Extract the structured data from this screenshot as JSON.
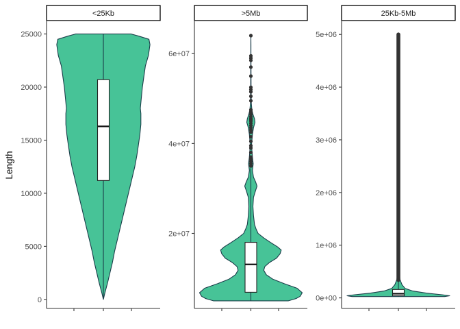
{
  "chart_data": {
    "type": "violin",
    "ylabel": "Length",
    "xlabel": "",
    "colors": {
      "violin_fill": "#47c397",
      "outline": "#1c3d4a",
      "box_fill": "#ffffff",
      "box_stroke": "#222222",
      "outlier": "#333333",
      "strip_fill": "#ffffff",
      "axis": "#333333"
    },
    "panels": [
      {
        "strip": "<25Kb",
        "y_range": [
          -850,
          26200
        ],
        "y_ticks": [
          0,
          5000,
          10000,
          15000,
          20000,
          25000
        ],
        "y_tick_labels": [
          "0",
          "5000",
          "10000",
          "15000",
          "20000",
          "25000"
        ],
        "violin_profile": [
          [
            0,
            0.0
          ],
          [
            600,
            0.03
          ],
          [
            1500,
            0.08
          ],
          [
            2500,
            0.13
          ],
          [
            3500,
            0.18
          ],
          [
            4500,
            0.22
          ],
          [
            5500,
            0.27
          ],
          [
            6500,
            0.32
          ],
          [
            7500,
            0.37
          ],
          [
            8500,
            0.42
          ],
          [
            9500,
            0.47
          ],
          [
            10500,
            0.52
          ],
          [
            11500,
            0.57
          ],
          [
            12500,
            0.62
          ],
          [
            13500,
            0.66
          ],
          [
            14500,
            0.69
          ],
          [
            15500,
            0.72
          ],
          [
            16500,
            0.74
          ],
          [
            17500,
            0.74
          ],
          [
            18000,
            0.73
          ],
          [
            19000,
            0.75
          ],
          [
            20000,
            0.77
          ],
          [
            21000,
            0.8
          ],
          [
            22000,
            0.83
          ],
          [
            23000,
            0.89
          ],
          [
            24000,
            0.92
          ],
          [
            24500,
            0.9
          ],
          [
            24800,
            0.7
          ],
          [
            25000,
            0.55
          ]
        ],
        "box": {
          "q1": 11200,
          "median": 16300,
          "q3": 20700,
          "whisker_low": 0,
          "whisker_high": 25000
        },
        "outliers": []
      },
      {
        "strip": ">5Mb",
        "y_range": [
          3300000,
          67200000
        ],
        "y_ticks": [
          20000000,
          40000000,
          60000000
        ],
        "y_tick_labels": [
          "2e+07",
          "4e+07",
          "6e+07"
        ],
        "violin_profile": [
          [
            5000000,
            0.73
          ],
          [
            5500000,
            0.88
          ],
          [
            6000000,
            0.96
          ],
          [
            6800000,
            1.0
          ],
          [
            7800000,
            0.9
          ],
          [
            8800000,
            0.65
          ],
          [
            9800000,
            0.43
          ],
          [
            10800000,
            0.3
          ],
          [
            11800000,
            0.25
          ],
          [
            12600000,
            0.27
          ],
          [
            13500000,
            0.36
          ],
          [
            14500000,
            0.5
          ],
          [
            15500000,
            0.57
          ],
          [
            16300000,
            0.59
          ],
          [
            17000000,
            0.52
          ],
          [
            18000000,
            0.38
          ],
          [
            19000000,
            0.25
          ],
          [
            20000000,
            0.14
          ],
          [
            21000000,
            0.1
          ],
          [
            22000000,
            0.07
          ],
          [
            24000000,
            0.05
          ],
          [
            26000000,
            0.04
          ],
          [
            28000000,
            0.05
          ],
          [
            29500000,
            0.09
          ],
          [
            30500000,
            0.12
          ],
          [
            31500000,
            0.09
          ],
          [
            32500000,
            0.05
          ],
          [
            34000000,
            0.03
          ],
          [
            35500000,
            0.045
          ],
          [
            37000000,
            0.03
          ],
          [
            38500000,
            0.02
          ],
          [
            40000000,
            0.015
          ],
          [
            42000000,
            0.03
          ],
          [
            43500000,
            0.05
          ],
          [
            44700000,
            0.08
          ],
          [
            45500000,
            0.07
          ],
          [
            46500000,
            0.04
          ],
          [
            47500000,
            0.02
          ],
          [
            49000000,
            0.008
          ],
          [
            52000000,
            0.004
          ],
          [
            57000000,
            0.003
          ],
          [
            60000000,
            0.002
          ],
          [
            62000000,
            0.001
          ],
          [
            64000000,
            0.0
          ]
        ],
        "box": {
          "q1": 6900000,
          "median": 13100000,
          "q3": 18000000,
          "whisker_low": 5000000,
          "whisker_high": 34500000
        },
        "outliers": [
          35000000,
          35500000,
          36000000,
          36500000,
          37000000,
          38000000,
          39000000,
          39500000,
          40500000,
          41500000,
          42500000,
          43000000,
          43500000,
          44000000,
          44500000,
          45000000,
          45300000,
          45600000,
          46000000,
          46500000,
          47000000,
          47500000,
          49500000,
          50500000,
          51500000,
          52000000,
          52500000,
          55000000,
          57000000,
          58500000,
          59000000,
          59500000,
          64000000
        ]
      },
      {
        "strip": "25Kb-5Mb",
        "y_range": [
          -200000,
          5250000
        ],
        "y_ticks": [
          0,
          1000000,
          2000000,
          3000000,
          4000000,
          5000000
        ],
        "y_tick_labels": [
          "0e+00",
          "1e+06",
          "2e+06",
          "3e+06",
          "4e+06",
          "5e+06"
        ],
        "violin_profile": [
          [
            25000,
            0.9
          ],
          [
            40000,
            1.0
          ],
          [
            60000,
            0.85
          ],
          [
            90000,
            0.55
          ],
          [
            130000,
            0.28
          ],
          [
            180000,
            0.13
          ],
          [
            250000,
            0.07
          ],
          [
            350000,
            0.03
          ],
          [
            500000,
            0.015
          ],
          [
            700000,
            0.008
          ],
          [
            1000000,
            0.004
          ],
          [
            1500000,
            0.002
          ],
          [
            2500000,
            0.001
          ],
          [
            5000000,
            0.0005
          ]
        ],
        "box": {
          "q1": 40000,
          "median": 80000,
          "q3": 160000,
          "whisker_low": 25000,
          "whisker_high": 340000
        },
        "outlier_band": {
          "from": 340000,
          "to": 5000000
        }
      }
    ]
  }
}
